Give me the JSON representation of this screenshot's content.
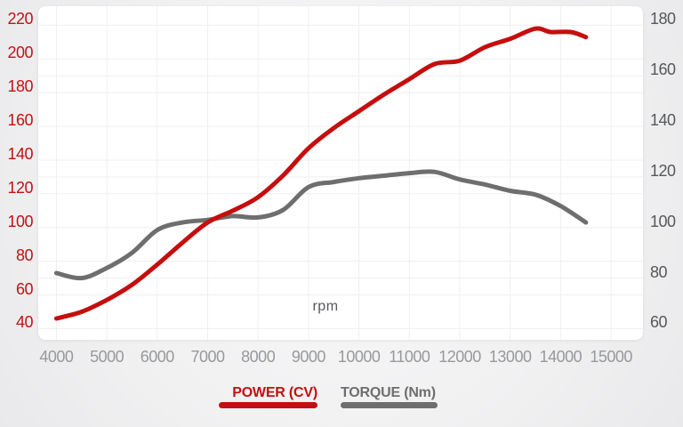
{
  "chart_data": {
    "type": "line",
    "title": "",
    "xlabel": "rpm",
    "legend_position": "bottom",
    "grid": true,
    "x_axis": {
      "min": 4000,
      "max": 15000,
      "ticks": [
        4000,
        5000,
        6000,
        7000,
        8000,
        9000,
        10000,
        11000,
        12000,
        13000,
        14000,
        15000
      ],
      "tick_color": "#97999c"
    },
    "axes": {
      "left": {
        "label": "POWER (CV)",
        "min": 40,
        "max": 220,
        "ticks": [
          220,
          200,
          180,
          160,
          140,
          120,
          100,
          80,
          60,
          40
        ],
        "tick_color": "#c41212"
      },
      "right": {
        "label": "TORQUE (Nm)",
        "min": 60,
        "max": 180,
        "ticks": [
          180,
          160,
          140,
          120,
          100,
          80,
          60
        ],
        "tick_color": "#55585c"
      }
    },
    "series": [
      {
        "name": "POWER (CV)",
        "axis": "left",
        "color": "#c50e0e",
        "points": [
          [
            4000,
            46
          ],
          [
            4500,
            50
          ],
          [
            5000,
            57
          ],
          [
            5500,
            66
          ],
          [
            6000,
            78
          ],
          [
            6500,
            91
          ],
          [
            7000,
            103
          ],
          [
            7500,
            110
          ],
          [
            8000,
            118
          ],
          [
            8500,
            131
          ],
          [
            9000,
            147
          ],
          [
            9500,
            159
          ],
          [
            10000,
            169
          ],
          [
            10500,
            179
          ],
          [
            11000,
            188
          ],
          [
            11500,
            197
          ],
          [
            12000,
            199
          ],
          [
            12500,
            207
          ],
          [
            13000,
            212
          ],
          [
            13500,
            218
          ],
          [
            13800,
            216
          ],
          [
            14200,
            216
          ],
          [
            14500,
            213
          ]
        ]
      },
      {
        "name": "TORQUE (Nm)",
        "axis": "right",
        "color": "#6e6e6e",
        "points": [
          [
            4000,
            82
          ],
          [
            4500,
            80
          ],
          [
            5000,
            84
          ],
          [
            5500,
            90
          ],
          [
            6000,
            99
          ],
          [
            6500,
            102
          ],
          [
            7000,
            103
          ],
          [
            7500,
            104.5
          ],
          [
            8000,
            104
          ],
          [
            8500,
            107
          ],
          [
            9000,
            116
          ],
          [
            9500,
            118
          ],
          [
            10000,
            119.5
          ],
          [
            10500,
            120.5
          ],
          [
            11000,
            121.5
          ],
          [
            11500,
            122
          ],
          [
            12000,
            119
          ],
          [
            12500,
            117
          ],
          [
            13000,
            114.5
          ],
          [
            13500,
            113
          ],
          [
            14000,
            108.5
          ],
          [
            14500,
            102
          ]
        ]
      }
    ]
  }
}
